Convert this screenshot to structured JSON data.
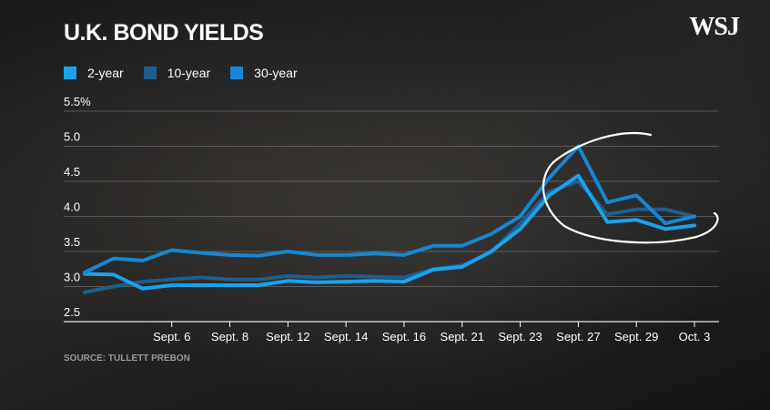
{
  "header": {
    "title": "U.K. BOND YIELDS",
    "logo": "WSJ"
  },
  "footer": {
    "source": "SOURCE: TULLETT PREBON"
  },
  "colors": {
    "series_2y": "#1aa3ea",
    "series_10y": "#1d5f8c",
    "series_30y": "#1787d3",
    "grid": "#ffffff",
    "circle": "#ffffff"
  },
  "chart_data": {
    "type": "line",
    "title": "U.K. BOND YIELDS",
    "xlabel": "",
    "ylabel": "",
    "ylim": [
      2.5,
      5.5
    ],
    "yticks": [
      "5.5%",
      "5.0",
      "4.5",
      "4.0",
      "3.5",
      "3.0",
      "2.5"
    ],
    "x_tick_labels": [
      "Sept. 6",
      "Sept. 8",
      "Sept. 12",
      "Sept. 14",
      "Sept. 16",
      "Sept. 21",
      "Sept. 23",
      "Sept. 27",
      "Sept. 29",
      "Oct. 3"
    ],
    "x": [
      "Sept. 1",
      "Sept. 2",
      "Sept. 5",
      "Sept. 6",
      "Sept. 7",
      "Sept. 8",
      "Sept. 9",
      "Sept. 12",
      "Sept. 13",
      "Sept. 14",
      "Sept. 15",
      "Sept. 16",
      "Sept. 20",
      "Sept. 21",
      "Sept. 22",
      "Sept. 23",
      "Sept. 26",
      "Sept. 27",
      "Sept. 28",
      "Sept. 29",
      "Sept. 30",
      "Oct. 3"
    ],
    "series": [
      {
        "name": "2-year",
        "values": [
          3.18,
          3.17,
          2.97,
          3.02,
          3.02,
          3.02,
          3.02,
          3.08,
          3.06,
          3.07,
          3.08,
          3.07,
          3.24,
          3.28,
          3.5,
          3.82,
          4.3,
          4.58,
          3.92,
          3.95,
          3.82,
          3.87
        ]
      },
      {
        "name": "10-year",
        "values": [
          2.92,
          3.0,
          3.07,
          3.1,
          3.13,
          3.1,
          3.1,
          3.15,
          3.13,
          3.15,
          3.14,
          3.13,
          3.25,
          3.3,
          3.49,
          3.9,
          4.35,
          4.5,
          4.03,
          4.1,
          4.1,
          4.0
        ]
      },
      {
        "name": "30-year",
        "values": [
          3.2,
          3.4,
          3.37,
          3.52,
          3.48,
          3.45,
          3.44,
          3.5,
          3.45,
          3.45,
          3.47,
          3.45,
          3.58,
          3.58,
          3.75,
          4.0,
          4.55,
          5.0,
          4.2,
          4.3,
          3.9,
          4.0
        ]
      }
    ],
    "grid": true,
    "legend_position": "top-left",
    "annotation": "hand-drawn circle around Sept. 27 – Oct. 3"
  }
}
